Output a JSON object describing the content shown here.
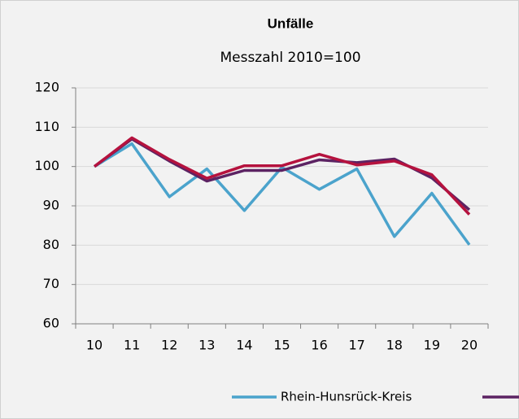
{
  "chart_data": {
    "type": "line",
    "title": "Unfälle",
    "subtitle": "Messzahl 2010=100",
    "categories": [
      "10",
      "11",
      "12",
      "13",
      "14",
      "15",
      "16",
      "17",
      "18",
      "19",
      "20"
    ],
    "series": [
      {
        "name": "Rhein-Hunsrück-Kreis",
        "color": "#4ba3cc",
        "values": [
          100,
          105.8,
          92.3,
          99.4,
          88.8,
          99.8,
          94.2,
          99.4,
          82.2,
          93.2,
          80.1
        ]
      },
      {
        "color": "#5c2363",
        "values": [
          100,
          107,
          101.4,
          96.3,
          99,
          99,
          101.7,
          101,
          101.9,
          97.1,
          89
        ]
      },
      {
        "color": "#b5123e",
        "values": [
          100,
          107.3,
          101.8,
          97,
          100.2,
          100.2,
          103.1,
          100.4,
          101.4,
          97.9,
          87.8
        ]
      }
    ],
    "ylim": [
      60,
      120
    ],
    "yticks": [
      60,
      70,
      80,
      90,
      100,
      110,
      120
    ],
    "grid": true
  }
}
